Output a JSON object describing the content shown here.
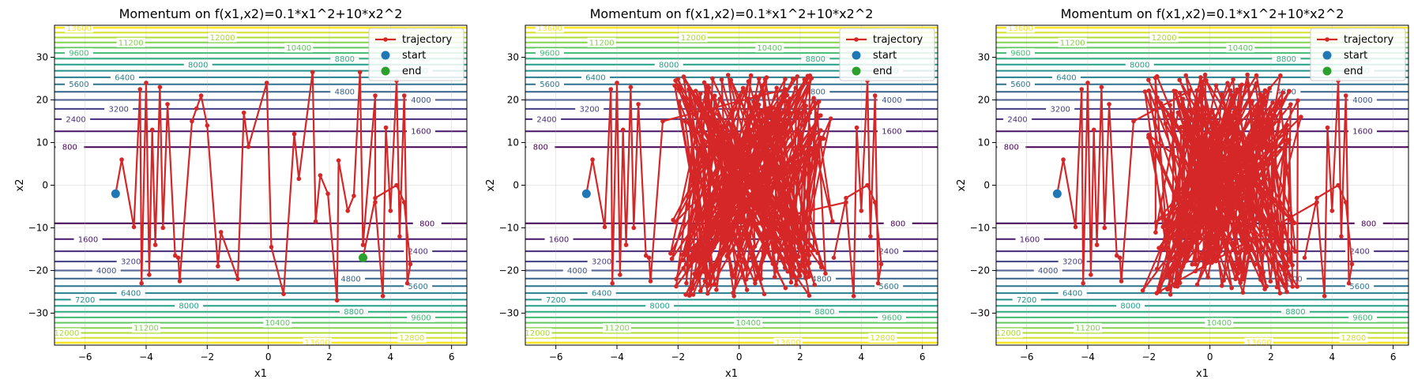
{
  "chart_data": [
    {
      "type": "line",
      "panel": "left",
      "title": "Momentum on f(x1,x2)=0.1*x1^2+10*x2^2",
      "xlabel": "x1",
      "ylabel": "x2",
      "xlim": [
        -7.0,
        6.5
      ],
      "ylim": [
        -37.5,
        37.5
      ],
      "xticks": [
        -6,
        -4,
        -2,
        0,
        2,
        4,
        6
      ],
      "yticks": [
        -30,
        -20,
        -10,
        0,
        10,
        20,
        30
      ],
      "grid": true,
      "legend": "top-right",
      "legend_entries": [
        "trajectory",
        "start",
        "end"
      ],
      "contour_levels": [
        800,
        1600,
        2400,
        3200,
        4000,
        4800,
        5600,
        6400,
        7200,
        8000,
        8800,
        9600,
        10400,
        11200,
        12000,
        12800,
        13600
      ],
      "contour_labels_top": [
        {
          "x": -6.2,
          "level": 13600
        },
        {
          "x": -4.5,
          "level": 11200
        },
        {
          "x": -1.5,
          "level": 12000
        },
        {
          "x": 1.0,
          "level": 10400
        },
        {
          "x": 5.0,
          "level": 12800
        },
        {
          "x": -6.2,
          "level": 9600
        },
        {
          "x": -2.3,
          "level": 8000
        },
        {
          "x": 2.5,
          "level": 8800
        },
        {
          "x": 4.9,
          "level": 7200
        },
        {
          "x": -4.7,
          "level": 6400
        },
        {
          "x": -6.2,
          "level": 5600
        },
        {
          "x": 2.5,
          "level": 4800
        },
        {
          "x": 5.0,
          "level": 4000
        },
        {
          "x": -4.9,
          "level": 3200
        },
        {
          "x": -6.3,
          "level": 2400
        },
        {
          "x": 5.0,
          "level": 1600
        },
        {
          "x": -6.5,
          "level": 800
        }
      ],
      "contour_labels_bottom": [
        {
          "x": 5.2,
          "level": 800
        },
        {
          "x": -5.9,
          "level": 1600
        },
        {
          "x": 4.9,
          "level": 2400
        },
        {
          "x": -5.3,
          "level": 4000
        },
        {
          "x": -4.5,
          "level": 3200
        },
        {
          "x": 2.7,
          "level": 4800
        },
        {
          "x": 4.9,
          "level": 5600
        },
        {
          "x": -6.0,
          "level": 7200
        },
        {
          "x": -4.5,
          "level": 6400
        },
        {
          "x": -2.6,
          "level": 8000
        },
        {
          "x": 2.8,
          "level": 8800
        },
        {
          "x": 5.0,
          "level": 9600
        },
        {
          "x": 0.3,
          "level": 10400
        },
        {
          "x": -4.0,
          "level": 11200
        },
        {
          "x": -6.6,
          "level": 12000
        },
        {
          "x": 4.7,
          "level": 12800
        },
        {
          "x": 1.6,
          "level": 13600
        }
      ],
      "series": [
        {
          "name": "trajectory",
          "x": [
            -5.0,
            -4.8,
            -4.4,
            -4.2,
            -4.15,
            -4.0,
            -3.9,
            -3.8,
            -3.7,
            -3.55,
            -3.45,
            -3.3,
            -3.05,
            -2.95,
            -2.9,
            -2.5,
            -2.35,
            -2.2,
            -2.0,
            -1.65,
            -1.55,
            -1.0,
            -0.8,
            -0.65,
            -0.05,
            0.1,
            0.5,
            0.85,
            1.0,
            1.45,
            1.55,
            1.7,
            1.95,
            2.25,
            2.3,
            2.6,
            2.8,
            3.0,
            3.1,
            3.5,
            3.5,
            3.75,
            3.85,
            4.0,
            4.2,
            4.3,
            4.45,
            4.55,
            4.65,
            4.45,
            4.2,
            3.5,
            3.1
          ],
          "y": [
            -2.0,
            6.0,
            -9.8,
            22.5,
            -23.0,
            24.0,
            -21.0,
            13.0,
            -14.0,
            23.0,
            -10.0,
            19.0,
            -16.5,
            -17.0,
            -22.5,
            15.0,
            18.0,
            21.0,
            14.0,
            -19.0,
            -11.0,
            -22.0,
            17.0,
            9.0,
            24.0,
            -14.5,
            -25.5,
            12.0,
            1.5,
            26.5,
            -8.5,
            2.3,
            -2.0,
            -27.0,
            5.8,
            -6.0,
            -2.5,
            26.5,
            -14.0,
            21.0,
            -4.0,
            -26.0,
            13.5,
            -6.0,
            24.5,
            -12.0,
            21.0,
            -23.0,
            -18.5,
            -4.0,
            0.0,
            -3.0,
            -17.0
          ]
        }
      ],
      "start": {
        "x": -5.0,
        "y": -2.0
      },
      "end": {
        "x": 3.1,
        "y": -17.0
      }
    },
    {
      "type": "line",
      "panel": "middle",
      "title": "Momentum on f(x1,x2)=0.1*x1^2+10*x2^2",
      "xlabel": "x1",
      "ylabel": "x2",
      "xlim": [
        -7.0,
        6.5
      ],
      "ylim": [
        -37.5,
        37.5
      ],
      "xticks": [
        -6,
        -4,
        -2,
        0,
        2,
        4,
        6
      ],
      "yticks": [
        -30,
        -20,
        -10,
        0,
        10,
        20,
        30
      ],
      "grid": true,
      "legend": "top-right",
      "legend_entries": [
        "trajectory",
        "start",
        "end"
      ],
      "dense_trajectory": true,
      "start": {
        "x": -5.0,
        "y": -2.0
      }
    },
    {
      "type": "line",
      "panel": "right",
      "title": "Momentum on f(x1,x2)=0.1*x1^2+10*x2^2",
      "xlabel": "x1",
      "ylabel": "x2",
      "xlim": [
        -7.0,
        6.5
      ],
      "ylim": [
        -37.5,
        37.5
      ],
      "xticks": [
        -6,
        -4,
        -2,
        0,
        2,
        4,
        6
      ],
      "yticks": [
        -30,
        -20,
        -10,
        0,
        10,
        20,
        30
      ],
      "grid": true,
      "legend": "top-right",
      "legend_entries": [
        "trajectory",
        "start",
        "end"
      ],
      "dense_trajectory": true,
      "start": {
        "x": -5.0,
        "y": -2.0
      }
    }
  ],
  "colors": {
    "trajectory": "#d62728",
    "start": "#1f77b4",
    "end": "#2ca02c",
    "contour_low": "#440154",
    "contour_mid": "#21918c",
    "contour_high": "#fde725"
  }
}
